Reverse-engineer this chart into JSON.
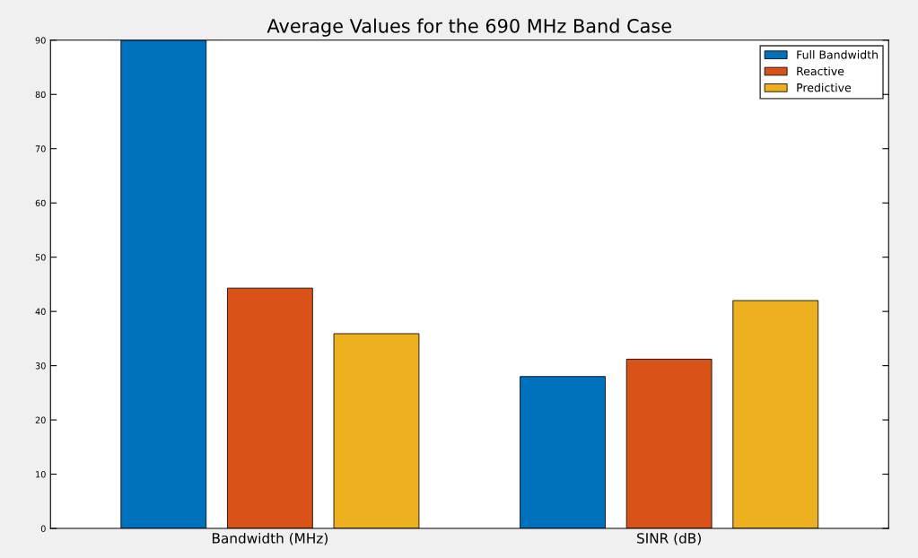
{
  "chart_data": {
    "type": "bar",
    "title": "Average Values for the 690 MHz Band Case",
    "categories": [
      "Bandwidth (MHz)",
      "SINR (dB)"
    ],
    "series": [
      {
        "name": "Full Bandwidth",
        "color": "#0072bd",
        "values": [
          90,
          28
        ]
      },
      {
        "name": "Reactive",
        "color": "#d95319",
        "values": [
          44.3,
          31.2
        ]
      },
      {
        "name": "Predictive",
        "color": "#edb120",
        "values": [
          35.9,
          42
        ]
      }
    ],
    "ylim": [
      0,
      90
    ],
    "yticks": [
      0,
      10,
      20,
      30,
      40,
      50,
      60,
      70,
      80,
      90
    ],
    "grid": false,
    "legend": "top right"
  }
}
